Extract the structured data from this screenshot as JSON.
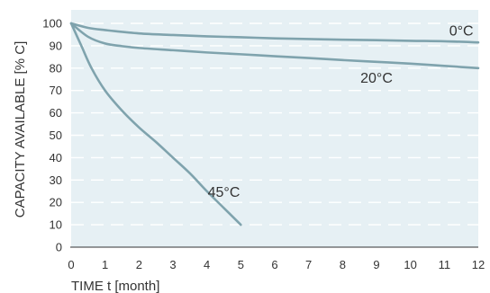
{
  "chart_data": {
    "type": "line",
    "title": "",
    "xlabel": "TIME t [month]",
    "ylabel": "CAPACITY AVAILABLE [% C]",
    "xlim": [
      0,
      12
    ],
    "ylim": [
      0,
      100
    ],
    "x_ticks": [
      0,
      1,
      2,
      3,
      4,
      5,
      6,
      7,
      8,
      9,
      10,
      11,
      12
    ],
    "y_ticks": [
      0,
      10,
      20,
      30,
      40,
      50,
      60,
      70,
      80,
      90,
      100
    ],
    "grid": "horizontal-dashed",
    "legend": "none",
    "series": [
      {
        "name": "0°C",
        "color": "#7fa3ad",
        "label_at": [
          11.5,
          94.5
        ],
        "points": [
          [
            0,
            100
          ],
          [
            0.5,
            98
          ],
          [
            1,
            97
          ],
          [
            2,
            95.5
          ],
          [
            3,
            94.8
          ],
          [
            4,
            94.2
          ],
          [
            5,
            93.8
          ],
          [
            6,
            93.3
          ],
          [
            7,
            93
          ],
          [
            8,
            92.7
          ],
          [
            9,
            92.5
          ],
          [
            10,
            92.2
          ],
          [
            11,
            92
          ],
          [
            12,
            91.5
          ]
        ]
      },
      {
        "name": "20°C",
        "color": "#7fa3ad",
        "label_at": [
          9,
          73.5
        ],
        "points": [
          [
            0,
            100
          ],
          [
            0.5,
            94
          ],
          [
            1,
            91
          ],
          [
            1.5,
            89.8
          ],
          [
            2,
            89
          ],
          [
            3,
            88
          ],
          [
            4,
            87
          ],
          [
            5,
            86.2
          ],
          [
            6,
            85.3
          ],
          [
            7,
            84.5
          ],
          [
            8,
            83.6
          ],
          [
            9,
            82.8
          ],
          [
            10,
            82
          ],
          [
            11,
            81
          ],
          [
            12,
            80
          ]
        ]
      },
      {
        "name": "45°C",
        "color": "#7fa3ad",
        "label_at": [
          4.5,
          22.5
        ],
        "points": [
          [
            0,
            100
          ],
          [
            0.3,
            90
          ],
          [
            0.6,
            80
          ],
          [
            1,
            70
          ],
          [
            1.5,
            61
          ],
          [
            2,
            53.5
          ],
          [
            2.5,
            47
          ],
          [
            3,
            40
          ],
          [
            3.5,
            33
          ],
          [
            4,
            25
          ],
          [
            4.5,
            17.5
          ],
          [
            5,
            10
          ]
        ]
      }
    ]
  }
}
